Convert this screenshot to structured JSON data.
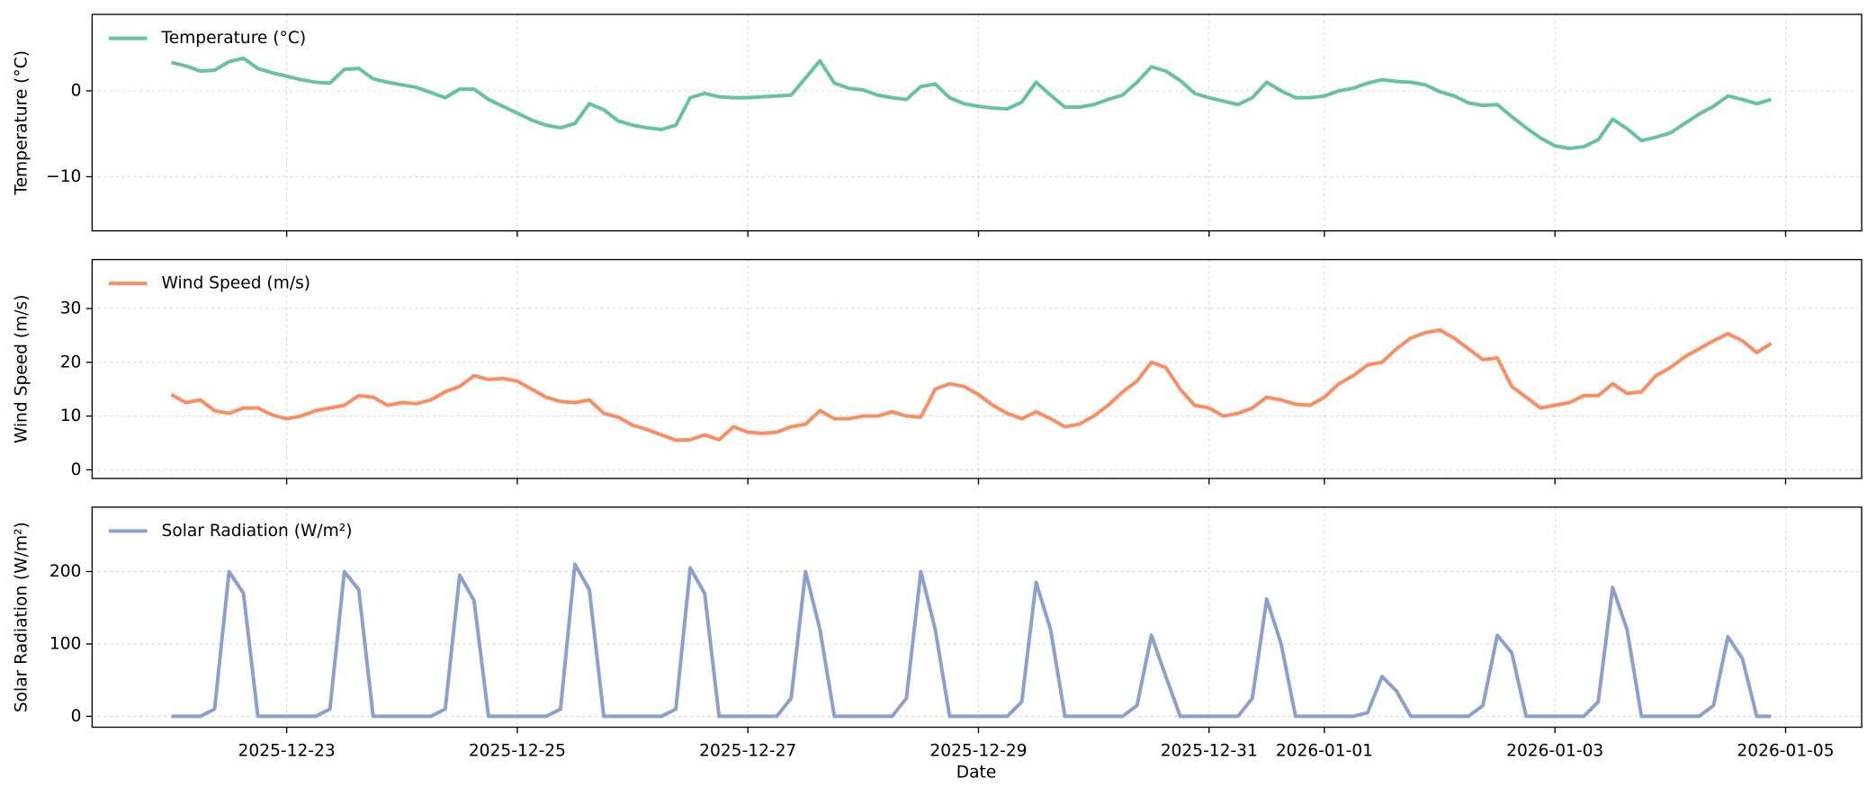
{
  "chart_data": {
    "type": "line",
    "xlabel": "Date",
    "grid": true,
    "legend": "upper left",
    "xlim": [
      "2025-12-21T07:30",
      "2026-01-05T15:50"
    ],
    "xticks": [
      "2025-12-23",
      "2025-12-25",
      "2025-12-27",
      "2025-12-29",
      "2025-12-31",
      "2026-01-01",
      "2026-01-03",
      "2026-01-05"
    ],
    "x": [
      "2025-12-22T00:00",
      "2025-12-22T03:00",
      "2025-12-22T06:00",
      "2025-12-22T09:00",
      "2025-12-22T12:00",
      "2025-12-22T15:00",
      "2025-12-22T18:00",
      "2025-12-22T21:00",
      "2025-12-23T00:00",
      "2025-12-23T03:00",
      "2025-12-23T06:00",
      "2025-12-23T09:00",
      "2025-12-23T12:00",
      "2025-12-23T15:00",
      "2025-12-23T18:00",
      "2025-12-23T21:00",
      "2025-12-24T00:00",
      "2025-12-24T03:00",
      "2025-12-24T06:00",
      "2025-12-24T09:00",
      "2025-12-24T12:00",
      "2025-12-24T15:00",
      "2025-12-24T18:00",
      "2025-12-24T21:00",
      "2025-12-25T00:00",
      "2025-12-25T03:00",
      "2025-12-25T06:00",
      "2025-12-25T09:00",
      "2025-12-25T12:00",
      "2025-12-25T15:00",
      "2025-12-25T18:00",
      "2025-12-25T21:00",
      "2025-12-26T00:00",
      "2025-12-26T03:00",
      "2025-12-26T06:00",
      "2025-12-26T09:00",
      "2025-12-26T12:00",
      "2025-12-26T15:00",
      "2025-12-26T18:00",
      "2025-12-26T21:00",
      "2025-12-27T00:00",
      "2025-12-27T03:00",
      "2025-12-27T06:00",
      "2025-12-27T09:00",
      "2025-12-27T12:00",
      "2025-12-27T15:00",
      "2025-12-27T18:00",
      "2025-12-27T21:00",
      "2025-12-28T00:00",
      "2025-12-28T03:00",
      "2025-12-28T06:00",
      "2025-12-28T09:00",
      "2025-12-28T12:00",
      "2025-12-28T15:00",
      "2025-12-28T18:00",
      "2025-12-28T21:00",
      "2025-12-29T00:00",
      "2025-12-29T03:00",
      "2025-12-29T06:00",
      "2025-12-29T09:00",
      "2025-12-29T12:00",
      "2025-12-29T15:00",
      "2025-12-29T18:00",
      "2025-12-29T21:00",
      "2025-12-30T00:00",
      "2025-12-30T03:00",
      "2025-12-30T06:00",
      "2025-12-30T09:00",
      "2025-12-30T12:00",
      "2025-12-30T15:00",
      "2025-12-30T18:00",
      "2025-12-30T21:00",
      "2025-12-31T00:00",
      "2025-12-31T03:00",
      "2025-12-31T06:00",
      "2025-12-31T09:00",
      "2025-12-31T12:00",
      "2025-12-31T15:00",
      "2025-12-31T18:00",
      "2025-12-31T21:00",
      "2026-01-01T00:00",
      "2026-01-01T03:00",
      "2026-01-01T06:00",
      "2026-01-01T09:00",
      "2026-01-01T12:00",
      "2026-01-01T15:00",
      "2026-01-01T18:00",
      "2026-01-01T21:00",
      "2026-01-02T00:00",
      "2026-01-02T03:00",
      "2026-01-02T06:00",
      "2026-01-02T09:00",
      "2026-01-02T12:00",
      "2026-01-02T15:00",
      "2026-01-02T18:00",
      "2026-01-02T21:00",
      "2026-01-03T00:00",
      "2026-01-03T03:00",
      "2026-01-03T06:00",
      "2026-01-03T09:00",
      "2026-01-03T12:00",
      "2026-01-03T15:00",
      "2026-01-03T18:00",
      "2026-01-03T21:00",
      "2026-01-04T00:00",
      "2026-01-04T03:00",
      "2026-01-04T06:00",
      "2026-01-04T09:00",
      "2026-01-04T12:00",
      "2026-01-04T15:00",
      "2026-01-04T18:00",
      "2026-01-04T21:00"
    ],
    "panels": [
      {
        "ylabel": "Temperature (°C)",
        "ylim": [
          -16.3,
          8.9
        ],
        "yticks": [
          {
            "value": -10,
            "label": "−10"
          },
          0
        ],
        "series": [
          {
            "name": "Temperature (°C)",
            "color": "#66c2a5",
            "values": [
              3.3,
              2.9,
              2.3,
              2.4,
              3.4,
              3.8,
              2.6,
              2.1,
              1.7,
              1.3,
              1.0,
              0.9,
              2.5,
              2.6,
              1.4,
              1.0,
              0.7,
              0.4,
              -0.2,
              -0.8,
              0.2,
              0.2,
              -1.0,
              -1.8,
              -2.6,
              -3.4,
              -4.0,
              -4.3,
              -3.8,
              -1.5,
              -2.2,
              -3.5,
              -4.0,
              -4.3,
              -4.5,
              -4.0,
              -0.8,
              -0.3,
              -0.7,
              -0.8,
              -0.8,
              -0.7,
              -0.6,
              -0.5,
              1.5,
              3.5,
              0.9,
              0.3,
              0.1,
              -0.5,
              -0.8,
              -1.0,
              0.5,
              0.8,
              -0.8,
              -1.5,
              -1.8,
              -2.0,
              -2.1,
              -1.3,
              1.0,
              -0.5,
              -1.9,
              -1.9,
              -1.6,
              -1.0,
              -0.5,
              1.0,
              2.8,
              2.3,
              1.2,
              -0.3,
              -0.8,
              -1.2,
              -1.6,
              -0.8,
              1.0,
              0.0,
              -0.8,
              -0.8,
              -0.6,
              0.0,
              0.3,
              0.9,
              1.3,
              1.1,
              1.0,
              0.7,
              -0.1,
              -0.6,
              -1.4,
              -1.7,
              -1.6,
              -3.0,
              -4.3,
              -5.5,
              -6.4,
              -6.7,
              -6.5,
              -5.7,
              -3.3,
              -4.4,
              -5.8,
              -5.4,
              -4.9,
              -3.8,
              -2.7,
              -1.8,
              -0.6,
              -1.0,
              -1.5,
              -1.0
            ]
          }
        ]
      },
      {
        "ylabel": "Wind Speed (m/s)",
        "ylim": [
          -1.6,
          39.1
        ],
        "yticks": [
          0,
          10,
          20,
          30
        ],
        "series": [
          {
            "name": "Wind Speed (m/s)",
            "color": "#fc8d62",
            "values": [
              14.0,
              12.5,
              13.0,
              11.0,
              10.5,
              11.5,
              11.5,
              10.2,
              9.5,
              10.0,
              11.0,
              11.5,
              12.0,
              13.8,
              13.5,
              12.0,
              12.5,
              12.3,
              13.0,
              14.5,
              15.5,
              17.5,
              16.8,
              17.0,
              16.5,
              15.0,
              13.5,
              12.7,
              12.5,
              13.0,
              10.5,
              9.8,
              8.3,
              7.5,
              6.5,
              5.5,
              5.6,
              6.5,
              5.6,
              8.0,
              7.0,
              6.8,
              7.0,
              8.0,
              8.5,
              11.0,
              9.5,
              9.5,
              10.0,
              10.0,
              10.8,
              10.0,
              9.8,
              15.0,
              16.0,
              15.5,
              14.0,
              12.0,
              10.5,
              9.5,
              10.8,
              9.5,
              8.0,
              8.5,
              10.0,
              12.0,
              14.5,
              16.5,
              20.0,
              19.0,
              15.0,
              12.0,
              11.5,
              10.0,
              10.5,
              11.5,
              13.5,
              13.0,
              12.2,
              12.0,
              13.5,
              16.0,
              17.5,
              19.5,
              20.0,
              22.5,
              24.5,
              25.5,
              26.0,
              24.5,
              22.5,
              20.5,
              20.8,
              15.5,
              13.5,
              11.5,
              12.0,
              12.5,
              13.8,
              13.8,
              16.0,
              14.2,
              14.5,
              17.5,
              19.0,
              21.0,
              22.5,
              24.0,
              25.3,
              24.0,
              21.8,
              23.5
            ]
          }
        ]
      },
      {
        "ylabel": "Solar Radiation (W/m²)",
        "ylim": [
          -15,
          289
        ],
        "yticks": [
          0,
          100,
          200
        ],
        "series": [
          {
            "name": "Solar Radiation (W/m²)",
            "color": "#8da0cb",
            "values": [
              0,
              0,
              0,
              10,
              200,
              170,
              0,
              0,
              0,
              0,
              0,
              10,
              200,
              175,
              0,
              0,
              0,
              0,
              0,
              10,
              195,
              160,
              0,
              0,
              0,
              0,
              0,
              10,
              210,
              175,
              0,
              0,
              0,
              0,
              0,
              10,
              205,
              170,
              0,
              0,
              0,
              0,
              0,
              25,
              200,
              120,
              0,
              0,
              0,
              0,
              0,
              25,
              200,
              120,
              0,
              0,
              0,
              0,
              0,
              20,
              185,
              120,
              0,
              0,
              0,
              0,
              0,
              15,
              112,
              55,
              0,
              0,
              0,
              0,
              0,
              25,
              162,
              100,
              0,
              0,
              0,
              0,
              0,
              5,
              55,
              35,
              0,
              0,
              0,
              0,
              0,
              15,
              112,
              88,
              0,
              0,
              0,
              0,
              0,
              20,
              178,
              120,
              0,
              0,
              0,
              0,
              0,
              15,
              110,
              80,
              0,
              0
            ]
          }
        ]
      }
    ]
  }
}
